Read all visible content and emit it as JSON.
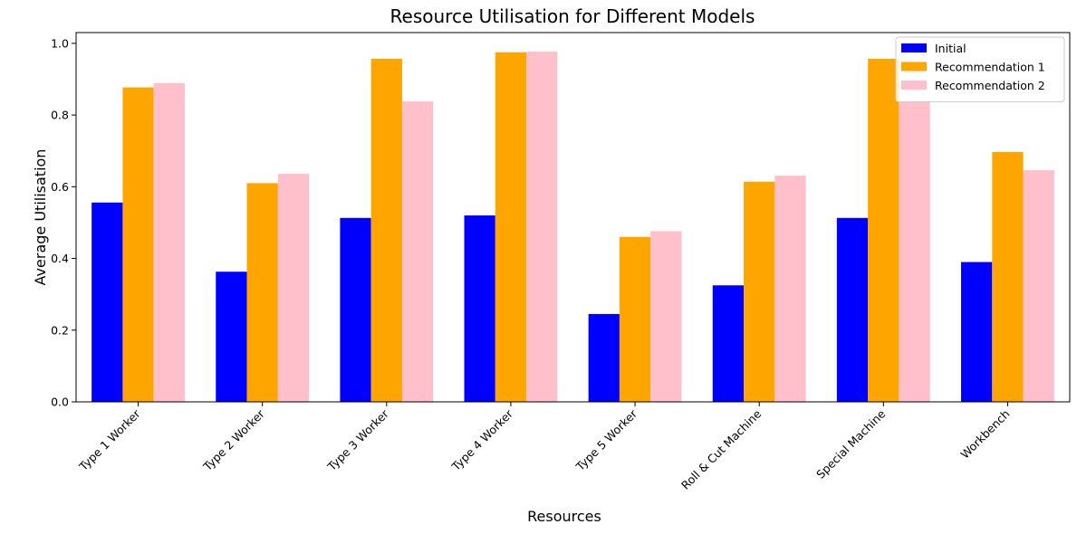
{
  "chart_data": {
    "type": "bar",
    "title": "Resource Utilisation for Different Models",
    "xlabel": "Resources",
    "ylabel": "Average Utilisation",
    "ylim": [
      0,
      1.03
    ],
    "yticks": [
      0.0,
      0.2,
      0.4,
      0.6,
      0.8,
      1.0
    ],
    "ytick_labels": [
      "0.0",
      "0.2",
      "0.4",
      "0.6",
      "0.8",
      "1.0"
    ],
    "categories": [
      "Type 1 Worker",
      "Type 2 Worker",
      "Type 3 Worker",
      "Type 4 Worker",
      "Type 5 Worker",
      "Roll & Cut Machine",
      "Special Machine",
      "Workbench"
    ],
    "series": [
      {
        "name": "Initial",
        "color": "#0000ff",
        "values": [
          0.556,
          0.363,
          0.513,
          0.52,
          0.245,
          0.325,
          0.513,
          0.39
        ]
      },
      {
        "name": "Recommendation 1",
        "color": "#ffa500",
        "values": [
          0.877,
          0.61,
          0.957,
          0.975,
          0.46,
          0.614,
          0.957,
          0.697
        ]
      },
      {
        "name": "Recommendation 2",
        "color": "#ffc0cb",
        "values": [
          0.889,
          0.636,
          0.838,
          0.977,
          0.476,
          0.631,
          0.838,
          0.646
        ]
      }
    ],
    "legend_position": "top-right",
    "grid": false
  }
}
